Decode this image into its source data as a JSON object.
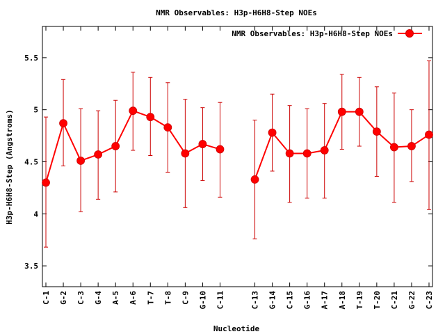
{
  "chart_data": {
    "type": "line",
    "title": "NMR Observables: H3p-H6H8-Step NOEs",
    "xlabel": "Nucleotide",
    "ylabel": "H3p-H6H8-Step (Angstroms)",
    "ylim": [
      3.3,
      5.8
    ],
    "yticks": [
      "3.5",
      "4",
      "4.5",
      "5",
      "5.5"
    ],
    "grid": false,
    "legend_position": "top-right",
    "series_color": "#ff0000",
    "errorbar_color": "#cc0000",
    "categories": [
      "C-1",
      "G-2",
      "C-3",
      "G-4",
      "A-5",
      "A-6",
      "T-7",
      "T-8",
      "C-9",
      "G-10",
      "C-11",
      "C-13",
      "G-14",
      "C-15",
      "G-16",
      "A-17",
      "A-18",
      "T-19",
      "T-20",
      "C-21",
      "G-22",
      "C-23"
    ],
    "series": [
      {
        "name": "NMR Observables: H3p-H6H8-Step NOEs",
        "points": [
          {
            "label": "C-1",
            "x": 1,
            "y": 4.3,
            "err_low": 3.68,
            "err_high": 4.93
          },
          {
            "label": "G-2",
            "x": 2,
            "y": 4.87,
            "err_low": 4.46,
            "err_high": 5.29
          },
          {
            "label": "C-3",
            "x": 3,
            "y": 4.51,
            "err_low": 4.02,
            "err_high": 5.01
          },
          {
            "label": "G-4",
            "x": 4,
            "y": 4.57,
            "err_low": 4.14,
            "err_high": 4.99
          },
          {
            "label": "A-5",
            "x": 5,
            "y": 4.65,
            "err_low": 4.21,
            "err_high": 5.09
          },
          {
            "label": "A-6",
            "x": 6,
            "y": 4.99,
            "err_low": 4.61,
            "err_high": 5.36
          },
          {
            "label": "T-7",
            "x": 7,
            "y": 4.93,
            "err_low": 4.56,
            "err_high": 5.31
          },
          {
            "label": "T-8",
            "x": 8,
            "y": 4.83,
            "err_low": 4.4,
            "err_high": 5.26
          },
          {
            "label": "C-9",
            "x": 9,
            "y": 4.58,
            "err_low": 4.06,
            "err_high": 5.1
          },
          {
            "label": "G-10",
            "x": 10,
            "y": 4.67,
            "err_low": 4.32,
            "err_high": 5.02
          },
          {
            "label": "C-11",
            "x": 11,
            "y": 4.62,
            "err_low": 4.16,
            "err_high": 5.07
          },
          {
            "label": "C-13",
            "x": 13,
            "y": 4.33,
            "err_low": 3.76,
            "err_high": 4.9
          },
          {
            "label": "G-14",
            "x": 14,
            "y": 4.78,
            "err_low": 4.41,
            "err_high": 5.15
          },
          {
            "label": "C-15",
            "x": 15,
            "y": 4.58,
            "err_low": 4.11,
            "err_high": 5.04
          },
          {
            "label": "G-16",
            "x": 16,
            "y": 4.58,
            "err_low": 4.15,
            "err_high": 5.01
          },
          {
            "label": "A-17",
            "x": 17,
            "y": 4.61,
            "err_low": 4.15,
            "err_high": 5.06
          },
          {
            "label": "A-18",
            "x": 18,
            "y": 4.98,
            "err_low": 4.62,
            "err_high": 5.34
          },
          {
            "label": "T-19",
            "x": 19,
            "y": 4.98,
            "err_low": 4.65,
            "err_high": 5.31
          },
          {
            "label": "T-20",
            "x": 20,
            "y": 4.79,
            "err_low": 4.36,
            "err_high": 5.22
          },
          {
            "label": "C-21",
            "x": 21,
            "y": 4.64,
            "err_low": 4.11,
            "err_high": 5.16
          },
          {
            "label": "G-22",
            "x": 22,
            "y": 4.65,
            "err_low": 4.31,
            "err_high": 5.0
          },
          {
            "label": "C-23",
            "x": 23,
            "y": 4.76,
            "err_low": 4.04,
            "err_high": 5.47
          }
        ]
      }
    ]
  }
}
